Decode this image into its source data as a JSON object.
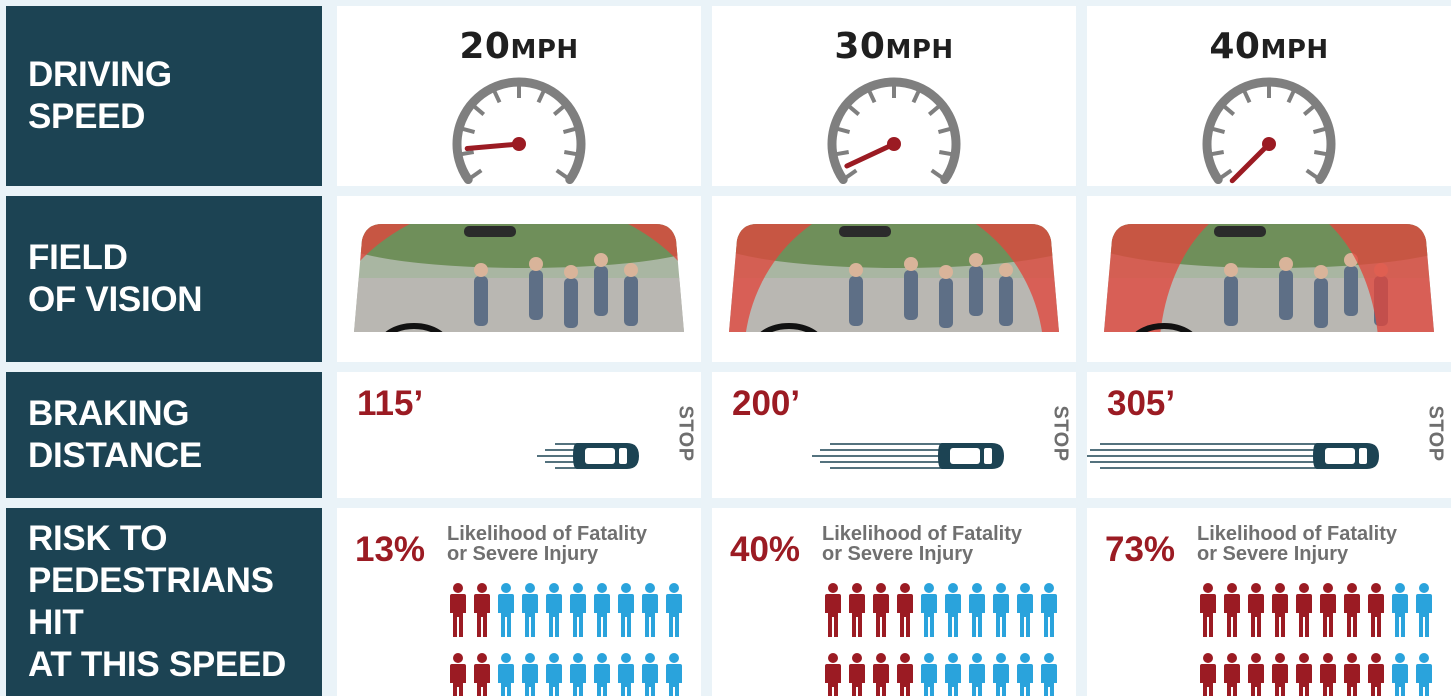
{
  "rows": {
    "driving_speed": "DRIVING\nSPEED",
    "field_of_vision": "FIELD\nOF VISION",
    "braking_distance": "BRAKING\nDISTANCE",
    "risk": "RISK TO\nPEDESTRIANS HIT\nAT THIS SPEED"
  },
  "columns": [
    {
      "speed_num": "20",
      "speed_unit": "MPH",
      "needle_angle": 185,
      "braking": "115’",
      "stop": "STOP",
      "risk_pct": "13%",
      "risk_label": "Likelihood of Fatality or Severe Injury",
      "risk_fraction": 0.13
    },
    {
      "speed_num": "30",
      "speed_unit": "MPH",
      "needle_angle": 205,
      "braking": "200’",
      "stop": "STOP",
      "risk_pct": "40%",
      "risk_label": "Likelihood of Fatality or Severe Injury",
      "risk_fraction": 0.4
    },
    {
      "speed_num": "40",
      "speed_unit": "MPH",
      "needle_angle": 225,
      "braking": "305’",
      "stop": "STOP",
      "risk_pct": "73%",
      "risk_label": "Likelihood of Fatality or Severe Injury",
      "risk_fraction": 0.73
    }
  ],
  "colors": {
    "label_bg": "#1c4353",
    "accent_red": "#9b1b23",
    "person_blue": "#2aa3dc",
    "gauge_gray": "#7f7f7f",
    "car_dark": "#1c4353"
  },
  "icons": {
    "gauge": "speedometer-icon",
    "windshield": "windshield-image",
    "car": "car-icon",
    "person": "person-icon"
  }
}
